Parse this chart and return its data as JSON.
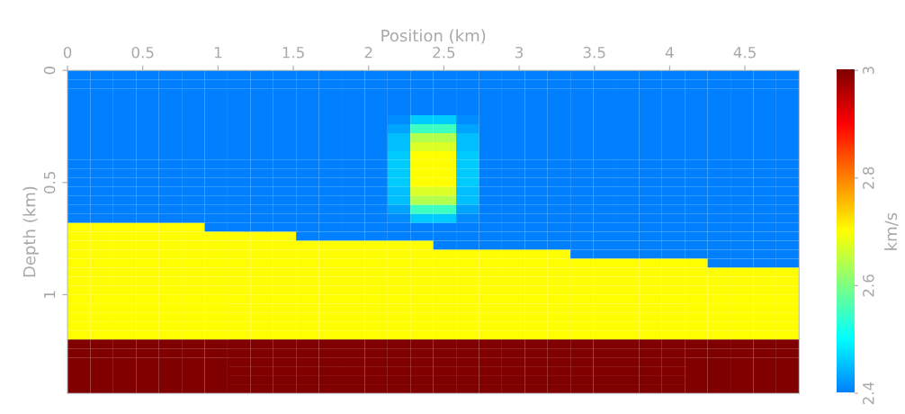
{
  "chart_data": {
    "type": "heatmap",
    "xlabel": "Position (km)",
    "ylabel": "Depth (km)",
    "clabel": "km/s",
    "xlim": [
      0,
      4.86
    ],
    "xticks": [
      0,
      0.5,
      1,
      1.5,
      2,
      2.5,
      3,
      3.5,
      4,
      4.5
    ],
    "ylim": [
      1.44,
      0
    ],
    "yticks": [
      0,
      0.5,
      1
    ],
    "clim": [
      2.4,
      3.0
    ],
    "cticks": [
      2.4,
      2.6,
      2.8,
      3
    ],
    "cells": [
      [
        2.4,
        2.4,
        2.4,
        2.4,
        2.4,
        2.4,
        2.4,
        2.4,
        2.4,
        2.4,
        2.4,
        2.4,
        2.4,
        2.4,
        2.4,
        2.4,
        2.4,
        2.4,
        2.4,
        2.4,
        2.4,
        2.4,
        2.4,
        2.4,
        2.4,
        2.4,
        2.4,
        2.4,
        2.4,
        2.4,
        2.4,
        2.4
      ],
      [
        2.4,
        2.4,
        2.4,
        2.4,
        2.4,
        2.4,
        2.4,
        2.4,
        2.4,
        2.4,
        2.4,
        2.4,
        2.4,
        2.4,
        2.4,
        2.4,
        2.4,
        2.4,
        2.4,
        2.4,
        2.4,
        2.4,
        2.4,
        2.4,
        2.4,
        2.4,
        2.4,
        2.4,
        2.4,
        2.4,
        2.4,
        2.4
      ],
      [
        2.4,
        2.4,
        2.4,
        2.4,
        2.4,
        2.4,
        2.4,
        2.4,
        2.4,
        2.4,
        2.4,
        2.4,
        2.4,
        2.4,
        2.4,
        2.4,
        2.4,
        2.4,
        2.4,
        2.4,
        2.4,
        2.4,
        2.4,
        2.4,
        2.4,
        2.4,
        2.4,
        2.4,
        2.4,
        2.4,
        2.4,
        2.4
      ],
      [
        2.4,
        2.4,
        2.4,
        2.4,
        2.4,
        2.4,
        2.4,
        2.4,
        2.4,
        2.4,
        2.4,
        2.4,
        2.4,
        2.4,
        2.4,
        2.4,
        2.4,
        2.4,
        2.4,
        2.4,
        2.4,
        2.4,
        2.4,
        2.4,
        2.4,
        2.4,
        2.4,
        2.4,
        2.4,
        2.4,
        2.4,
        2.4
      ],
      [
        2.4,
        2.4,
        2.4,
        2.4,
        2.4,
        2.4,
        2.4,
        2.4,
        2.4,
        2.4,
        2.4,
        2.4,
        2.4,
        2.4,
        2.4,
        2.4,
        2.4,
        2.4,
        2.4,
        2.4,
        2.4,
        2.4,
        2.4,
        2.4,
        2.4,
        2.4,
        2.4,
        2.4,
        2.4,
        2.4,
        2.4,
        2.4
      ],
      [
        2.4,
        2.4,
        2.4,
        2.4,
        2.4,
        2.4,
        2.4,
        2.4,
        2.4,
        2.4,
        2.4,
        2.4,
        2.4,
        2.4,
        2.41,
        2.46,
        2.46,
        2.41,
        2.4,
        2.4,
        2.4,
        2.4,
        2.4,
        2.4,
        2.4,
        2.4,
        2.4,
        2.4,
        2.4,
        2.4,
        2.4,
        2.4
      ],
      [
        2.4,
        2.4,
        2.4,
        2.4,
        2.4,
        2.4,
        2.4,
        2.4,
        2.4,
        2.4,
        2.4,
        2.4,
        2.4,
        2.4,
        2.43,
        2.55,
        2.55,
        2.43,
        2.4,
        2.4,
        2.4,
        2.4,
        2.4,
        2.4,
        2.4,
        2.4,
        2.4,
        2.4,
        2.4,
        2.4,
        2.4,
        2.4
      ],
      [
        2.4,
        2.4,
        2.4,
        2.4,
        2.4,
        2.4,
        2.4,
        2.4,
        2.4,
        2.4,
        2.4,
        2.4,
        2.4,
        2.4,
        2.45,
        2.64,
        2.64,
        2.45,
        2.4,
        2.4,
        2.4,
        2.4,
        2.4,
        2.4,
        2.4,
        2.4,
        2.4,
        2.4,
        2.4,
        2.4,
        2.4,
        2.4
      ],
      [
        2.4,
        2.4,
        2.4,
        2.4,
        2.4,
        2.4,
        2.4,
        2.4,
        2.4,
        2.4,
        2.4,
        2.4,
        2.4,
        2.4,
        2.45,
        2.67,
        2.67,
        2.45,
        2.4,
        2.4,
        2.4,
        2.4,
        2.4,
        2.4,
        2.4,
        2.4,
        2.4,
        2.4,
        2.4,
        2.4,
        2.4,
        2.4
      ],
      [
        2.4,
        2.4,
        2.4,
        2.4,
        2.4,
        2.4,
        2.4,
        2.4,
        2.4,
        2.4,
        2.4,
        2.4,
        2.4,
        2.4,
        2.46,
        2.7,
        2.7,
        2.46,
        2.4,
        2.4,
        2.4,
        2.4,
        2.4,
        2.4,
        2.4,
        2.4,
        2.4,
        2.4,
        2.4,
        2.4,
        2.4,
        2.4
      ],
      [
        2.4,
        2.4,
        2.4,
        2.4,
        2.4,
        2.4,
        2.4,
        2.4,
        2.4,
        2.4,
        2.4,
        2.4,
        2.4,
        2.4,
        2.46,
        2.7,
        2.7,
        2.46,
        2.4,
        2.4,
        2.4,
        2.4,
        2.4,
        2.4,
        2.4,
        2.4,
        2.4,
        2.4,
        2.4,
        2.4,
        2.4,
        2.4
      ],
      [
        2.4,
        2.4,
        2.4,
        2.4,
        2.4,
        2.4,
        2.4,
        2.4,
        2.4,
        2.4,
        2.4,
        2.4,
        2.4,
        2.4,
        2.46,
        2.7,
        2.7,
        2.46,
        2.4,
        2.4,
        2.4,
        2.4,
        2.4,
        2.4,
        2.4,
        2.4,
        2.4,
        2.4,
        2.4,
        2.4,
        2.4,
        2.4
      ],
      [
        2.4,
        2.4,
        2.4,
        2.4,
        2.4,
        2.4,
        2.4,
        2.4,
        2.4,
        2.4,
        2.4,
        2.4,
        2.4,
        2.4,
        2.46,
        2.7,
        2.7,
        2.46,
        2.4,
        2.4,
        2.4,
        2.4,
        2.4,
        2.4,
        2.4,
        2.4,
        2.4,
        2.4,
        2.4,
        2.4,
        2.4,
        2.4
      ],
      [
        2.4,
        2.4,
        2.4,
        2.4,
        2.4,
        2.4,
        2.4,
        2.4,
        2.4,
        2.4,
        2.4,
        2.4,
        2.4,
        2.4,
        2.45,
        2.67,
        2.67,
        2.45,
        2.4,
        2.4,
        2.4,
        2.4,
        2.4,
        2.4,
        2.4,
        2.4,
        2.4,
        2.4,
        2.4,
        2.4,
        2.4,
        2.4
      ],
      [
        2.4,
        2.4,
        2.4,
        2.4,
        2.4,
        2.4,
        2.4,
        2.4,
        2.4,
        2.4,
        2.4,
        2.4,
        2.4,
        2.4,
        2.45,
        2.64,
        2.64,
        2.45,
        2.4,
        2.4,
        2.4,
        2.4,
        2.4,
        2.4,
        2.4,
        2.4,
        2.4,
        2.4,
        2.4,
        2.4,
        2.4,
        2.4
      ],
      [
        2.4,
        2.4,
        2.4,
        2.4,
        2.4,
        2.4,
        2.4,
        2.4,
        2.4,
        2.4,
        2.4,
        2.4,
        2.4,
        2.4,
        2.43,
        2.55,
        2.55,
        2.43,
        2.4,
        2.4,
        2.4,
        2.4,
        2.4,
        2.4,
        2.4,
        2.4,
        2.4,
        2.4,
        2.4,
        2.4,
        2.4,
        2.4
      ],
      [
        2.4,
        2.4,
        2.4,
        2.4,
        2.4,
        2.4,
        2.4,
        2.4,
        2.4,
        2.4,
        2.4,
        2.4,
        2.4,
        2.4,
        2.41,
        2.46,
        2.46,
        2.41,
        2.4,
        2.4,
        2.4,
        2.4,
        2.4,
        2.4,
        2.4,
        2.4,
        2.4,
        2.4,
        2.4,
        2.4,
        2.4,
        2.4
      ],
      [
        2.7,
        2.7,
        2.7,
        2.7,
        2.7,
        2.7,
        2.4,
        2.4,
        2.4,
        2.4,
        2.4,
        2.4,
        2.4,
        2.4,
        2.4,
        2.4,
        2.4,
        2.4,
        2.4,
        2.4,
        2.4,
        2.4,
        2.4,
        2.4,
        2.4,
        2.4,
        2.4,
        2.4,
        2.4,
        2.4,
        2.4,
        2.4
      ],
      [
        2.7,
        2.7,
        2.7,
        2.7,
        2.7,
        2.7,
        2.7,
        2.7,
        2.7,
        2.7,
        2.4,
        2.4,
        2.4,
        2.4,
        2.4,
        2.4,
        2.4,
        2.4,
        2.4,
        2.4,
        2.4,
        2.4,
        2.4,
        2.4,
        2.4,
        2.4,
        2.4,
        2.4,
        2.4,
        2.4,
        2.4,
        2.4
      ],
      [
        2.7,
        2.7,
        2.7,
        2.7,
        2.7,
        2.7,
        2.7,
        2.7,
        2.7,
        2.7,
        2.7,
        2.7,
        2.7,
        2.7,
        2.7,
        2.7,
        2.4,
        2.4,
        2.4,
        2.4,
        2.4,
        2.4,
        2.4,
        2.4,
        2.4,
        2.4,
        2.4,
        2.4,
        2.4,
        2.4,
        2.4,
        2.4
      ],
      [
        2.7,
        2.7,
        2.7,
        2.7,
        2.7,
        2.7,
        2.7,
        2.7,
        2.7,
        2.7,
        2.7,
        2.7,
        2.7,
        2.7,
        2.7,
        2.7,
        2.7,
        2.7,
        2.7,
        2.7,
        2.7,
        2.7,
        2.4,
        2.4,
        2.4,
        2.4,
        2.4,
        2.4,
        2.4,
        2.4,
        2.4,
        2.4
      ],
      [
        2.7,
        2.7,
        2.7,
        2.7,
        2.7,
        2.7,
        2.7,
        2.7,
        2.7,
        2.7,
        2.7,
        2.7,
        2.7,
        2.7,
        2.7,
        2.7,
        2.7,
        2.7,
        2.7,
        2.7,
        2.7,
        2.7,
        2.7,
        2.7,
        2.7,
        2.7,
        2.7,
        2.7,
        2.4,
        2.4,
        2.4,
        2.4
      ],
      [
        2.7,
        2.7,
        2.7,
        2.7,
        2.7,
        2.7,
        2.7,
        2.7,
        2.7,
        2.7,
        2.7,
        2.7,
        2.7,
        2.7,
        2.7,
        2.7,
        2.7,
        2.7,
        2.7,
        2.7,
        2.7,
        2.7,
        2.7,
        2.7,
        2.7,
        2.7,
        2.7,
        2.7,
        2.7,
        2.7,
        2.7,
        2.7
      ],
      [
        2.7,
        2.7,
        2.7,
        2.7,
        2.7,
        2.7,
        2.7,
        2.7,
        2.7,
        2.7,
        2.7,
        2.7,
        2.7,
        2.7,
        2.7,
        2.7,
        2.7,
        2.7,
        2.7,
        2.7,
        2.7,
        2.7,
        2.7,
        2.7,
        2.7,
        2.7,
        2.7,
        2.7,
        2.7,
        2.7,
        2.7,
        2.7
      ],
      [
        2.7,
        2.7,
        2.7,
        2.7,
        2.7,
        2.7,
        2.7,
        2.7,
        2.7,
        2.7,
        2.7,
        2.7,
        2.7,
        2.7,
        2.7,
        2.7,
        2.7,
        2.7,
        2.7,
        2.7,
        2.7,
        2.7,
        2.7,
        2.7,
        2.7,
        2.7,
        2.7,
        2.7,
        2.7,
        2.7,
        2.7,
        2.7
      ],
      [
        2.7,
        2.7,
        2.7,
        2.7,
        2.7,
        2.7,
        2.7,
        2.7,
        2.7,
        2.7,
        2.7,
        2.7,
        2.7,
        2.7,
        2.7,
        2.7,
        2.7,
        2.7,
        2.7,
        2.7,
        2.7,
        2.7,
        2.7,
        2.7,
        2.7,
        2.7,
        2.7,
        2.7,
        2.7,
        2.7,
        2.7,
        2.7
      ],
      [
        2.7,
        2.7,
        2.7,
        2.7,
        2.7,
        2.7,
        2.7,
        2.7,
        2.7,
        2.7,
        2.7,
        2.7,
        2.7,
        2.7,
        2.7,
        2.7,
        2.7,
        2.7,
        2.7,
        2.7,
        2.7,
        2.7,
        2.7,
        2.7,
        2.7,
        2.7,
        2.7,
        2.7,
        2.7,
        2.7,
        2.7,
        2.7
      ],
      [
        2.7,
        2.7,
        2.7,
        2.7,
        2.7,
        2.7,
        2.7,
        2.7,
        2.7,
        2.7,
        2.7,
        2.7,
        2.7,
        2.7,
        2.7,
        2.7,
        2.7,
        2.7,
        2.7,
        2.7,
        2.7,
        2.7,
        2.7,
        2.7,
        2.7,
        2.7,
        2.7,
        2.7,
        2.7,
        2.7,
        2.7,
        2.7
      ],
      [
        2.7,
        2.7,
        2.7,
        2.7,
        2.7,
        2.7,
        2.7,
        2.7,
        2.7,
        2.7,
        2.7,
        2.7,
        2.7,
        2.7,
        2.7,
        2.7,
        2.7,
        2.7,
        2.7,
        2.7,
        2.7,
        2.7,
        2.7,
        2.7,
        2.7,
        2.7,
        2.7,
        2.7,
        2.7,
        2.7,
        2.7,
        2.7
      ],
      [
        2.7,
        2.7,
        2.7,
        2.7,
        2.7,
        2.7,
        2.7,
        2.7,
        2.7,
        2.7,
        2.7,
        2.7,
        2.7,
        2.7,
        2.7,
        2.7,
        2.7,
        2.7,
        2.7,
        2.7,
        2.7,
        2.7,
        2.7,
        2.7,
        2.7,
        2.7,
        2.7,
        2.7,
        2.7,
        2.7,
        2.7,
        2.7
      ],
      [
        3.0,
        3.0,
        3.0,
        3.0,
        3.0,
        3.0,
        3.0,
        3.0,
        3.0,
        3.0,
        3.0,
        3.0,
        3.0,
        3.0,
        3.0,
        3.0,
        3.0,
        3.0,
        3.0,
        3.0,
        3.0,
        3.0,
        3.0,
        3.0,
        3.0,
        3.0,
        3.0,
        3.0,
        3.0,
        3.0,
        3.0,
        3.0
      ],
      [
        3.0,
        3.0,
        3.0,
        3.0,
        3.0,
        3.0,
        3.0,
        3.0,
        3.0,
        3.0,
        3.0,
        3.0,
        3.0,
        3.0,
        3.0,
        3.0,
        3.0,
        3.0,
        3.0,
        3.0,
        3.0,
        3.0,
        3.0,
        3.0,
        3.0,
        3.0,
        3.0,
        3.0,
        3.0,
        3.0,
        3.0,
        3.0
      ],
      [
        3.0,
        3.0,
        3.0,
        3.0,
        3.0,
        3.0,
        3.0,
        3.0,
        3.0,
        3.0,
        3.0,
        3.0,
        3.0,
        3.0,
        3.0,
        3.0,
        3.0,
        3.0,
        3.0,
        3.0,
        3.0,
        3.0,
        3.0,
        3.0,
        3.0,
        3.0,
        3.0,
        3.0,
        3.0,
        3.0,
        3.0,
        3.0
      ],
      [
        3.0,
        3.0,
        3.0,
        3.0,
        3.0,
        3.0,
        3.0,
        3.0,
        3.0,
        3.0,
        3.0,
        3.0,
        3.0,
        3.0,
        3.0,
        3.0,
        3.0,
        3.0,
        3.0,
        3.0,
        3.0,
        3.0,
        3.0,
        3.0,
        3.0,
        3.0,
        3.0,
        3.0,
        3.0,
        3.0,
        3.0,
        3.0
      ],
      [
        3.0,
        3.0,
        3.0,
        3.0,
        3.0,
        3.0,
        3.0,
        3.0,
        3.0,
        3.0,
        3.0,
        3.0,
        3.0,
        3.0,
        3.0,
        3.0,
        3.0,
        3.0,
        3.0,
        3.0,
        3.0,
        3.0,
        3.0,
        3.0,
        3.0,
        3.0,
        3.0,
        3.0,
        3.0,
        3.0,
        3.0,
        3.0
      ],
      [
        3.0,
        3.0,
        3.0,
        3.0,
        3.0,
        3.0,
        3.0,
        3.0,
        3.0,
        3.0,
        3.0,
        3.0,
        3.0,
        3.0,
        3.0,
        3.0,
        3.0,
        3.0,
        3.0,
        3.0,
        3.0,
        3.0,
        3.0,
        3.0,
        3.0,
        3.0,
        3.0,
        3.0,
        3.0,
        3.0,
        3.0,
        3.0
      ]
    ]
  }
}
